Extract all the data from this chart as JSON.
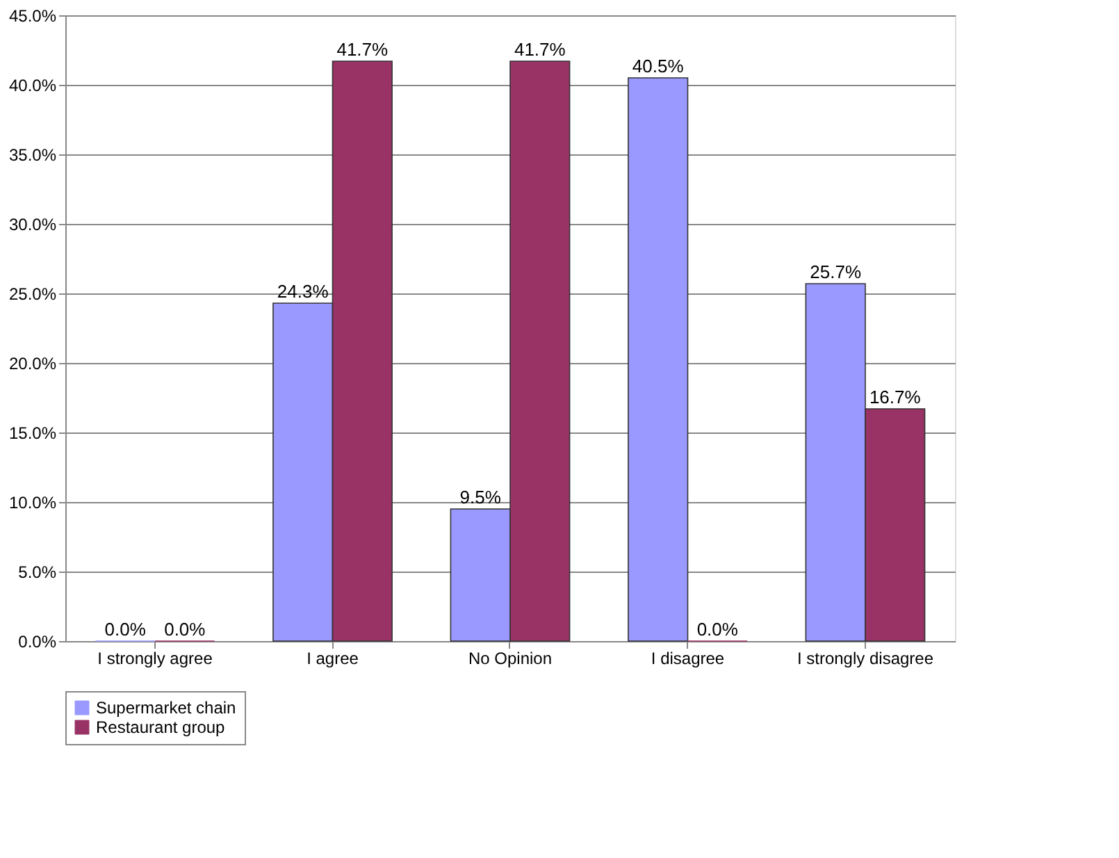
{
  "chart_data": {
    "type": "bar",
    "categories": [
      "I strongly agree",
      "I agree",
      "No Opinion",
      "I disagree",
      "I strongly disagree"
    ],
    "series": [
      {
        "name": "Supermarket chain",
        "color": "#9999ff",
        "values": [
          0.0,
          24.3,
          9.5,
          40.5,
          25.7
        ],
        "value_labels": [
          "0.0%",
          "24.3%",
          "9.5%",
          "40.5%",
          "25.7%"
        ]
      },
      {
        "name": "Restaurant group",
        "color": "#993366",
        "values": [
          0.0,
          41.7,
          41.7,
          0.0,
          16.7
        ],
        "value_labels": [
          "0.0%",
          "41.7%",
          "41.7%",
          "0.0%",
          "16.7%"
        ]
      }
    ],
    "ylim": [
      0,
      45
    ],
    "yticks": [
      {
        "value": 0,
        "label": "0.0%"
      },
      {
        "value": 5,
        "label": "5.0%"
      },
      {
        "value": 10,
        "label": "10.0%"
      },
      {
        "value": 15,
        "label": "15.0%"
      },
      {
        "value": 20,
        "label": "20.0%"
      },
      {
        "value": 25,
        "label": "25.0%"
      },
      {
        "value": 30,
        "label": "30.0%"
      },
      {
        "value": 35,
        "label": "35.0%"
      },
      {
        "value": 40,
        "label": "40.0%"
      },
      {
        "value": 45,
        "label": "45.0%"
      }
    ],
    "grid": "y",
    "legend": "bottom"
  }
}
